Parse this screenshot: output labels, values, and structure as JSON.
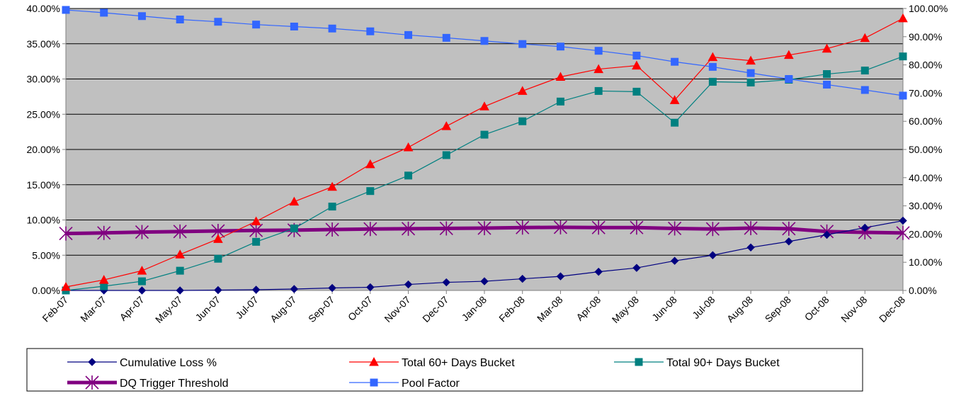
{
  "chart_data": {
    "type": "line",
    "title": "",
    "categories": [
      "Feb-07",
      "Mar-07",
      "Apr-07",
      "May-07",
      "Jun-07",
      "Jul-07",
      "Aug-07",
      "Sep-07",
      "Oct-07",
      "Nov-07",
      "Dec-07",
      "Jan-08",
      "Feb-08",
      "Mar-08",
      "Apr-08",
      "May-08",
      "Jun-08",
      "Jul-08",
      "Aug-08",
      "Sep-08",
      "Oct-08",
      "Nov-08",
      "Dec-08"
    ],
    "y_left": {
      "ylim": [
        0,
        40
      ],
      "ticks": [
        0,
        5,
        10,
        15,
        20,
        25,
        30,
        35,
        40
      ],
      "tick_labels": [
        "0.00%",
        "5.00%",
        "10.00%",
        "15.00%",
        "20.00%",
        "25.00%",
        "30.00%",
        "35.00%",
        "40.00%"
      ]
    },
    "y_right": {
      "ylim": [
        0,
        100
      ],
      "ticks": [
        0,
        10,
        20,
        30,
        40,
        50,
        60,
        70,
        80,
        90,
        100
      ],
      "tick_labels": [
        "0.00%",
        "10.00%",
        "20.00%",
        "30.00%",
        "40.00%",
        "50.00%",
        "60.00%",
        "70.00%",
        "80.00%",
        "90.00%",
        "100.00%"
      ]
    },
    "plot_background": "#c0c0c0",
    "grid": true,
    "legend_position": "bottom",
    "series": [
      {
        "name": "Cumulative Loss %",
        "axis": "left",
        "color": "#000080",
        "marker": "diamond",
        "line_width": 1.2,
        "values": [
          0.0,
          0.0,
          0.0,
          0.0,
          0.05,
          0.1,
          0.2,
          0.35,
          0.45,
          0.85,
          1.15,
          1.3,
          1.65,
          2.0,
          2.65,
          3.2,
          4.2,
          5.0,
          6.1,
          6.95,
          7.9,
          8.9,
          9.9
        ]
      },
      {
        "name": "Total 60+ Days Bucket",
        "axis": "left",
        "color": "#ff0000",
        "marker": "triangle",
        "line_width": 1.2,
        "values": [
          0.5,
          1.5,
          2.8,
          5.1,
          7.3,
          9.8,
          12.6,
          14.7,
          17.9,
          20.3,
          23.3,
          26.1,
          28.3,
          30.3,
          31.4,
          31.9,
          27.0,
          33.1,
          32.6,
          33.4,
          34.3,
          35.8,
          38.6
        ]
      },
      {
        "name": "Total 90+ Days Bucket",
        "axis": "left",
        "color": "#008080",
        "marker": "square",
        "line_width": 1.2,
        "values": [
          0.0,
          0.6,
          1.3,
          2.8,
          4.5,
          6.9,
          8.8,
          11.9,
          14.1,
          16.3,
          19.2,
          22.1,
          24.0,
          26.8,
          28.3,
          28.2,
          23.8,
          29.6,
          29.5,
          29.9,
          30.7,
          31.2,
          33.2
        ]
      },
      {
        "name": "DQ Trigger Threshold",
        "axis": "right",
        "color": "#800080",
        "marker": "star",
        "line_width": 5,
        "values": [
          20.2,
          20.4,
          20.7,
          20.9,
          21.1,
          21.3,
          21.4,
          21.6,
          21.8,
          21.9,
          22.0,
          22.1,
          22.3,
          22.4,
          22.3,
          22.3,
          22.0,
          21.8,
          22.1,
          21.9,
          20.9,
          20.6,
          20.4
        ]
      },
      {
        "name": "Pool Factor",
        "axis": "right",
        "color": "#3366ff",
        "marker": "square",
        "line_width": 1.2,
        "values": [
          99.5,
          98.5,
          97.3,
          96.1,
          95.3,
          94.3,
          93.6,
          92.9,
          91.9,
          90.6,
          89.6,
          88.5,
          87.4,
          86.5,
          85.0,
          83.3,
          81.1,
          79.3,
          77.1,
          75.0,
          73.0,
          71.1,
          69.1
        ]
      }
    ]
  }
}
